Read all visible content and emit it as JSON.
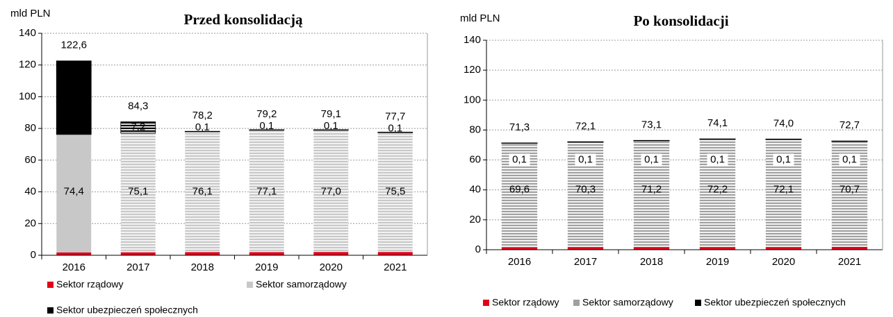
{
  "chart_data": [
    {
      "type": "bar",
      "stacked": true,
      "title": "Przed konsolidacją",
      "y_label": "mld PLN",
      "categories": [
        "2016",
        "2017",
        "2018",
        "2019",
        "2020",
        "2021"
      ],
      "series": [
        {
          "name": "Sektor rządowy",
          "color": "#e3001b",
          "values": [
            1.8,
            1.9,
            2.0,
            2.0,
            2.1,
            2.1
          ],
          "value_labels": [
            "1,8",
            "1,9",
            "2,0",
            "2,0",
            "2,1",
            "2,1"
          ]
        },
        {
          "name": "Sektor samorządowy",
          "color": "#c8c8c8",
          "values": [
            74.4,
            75.1,
            76.1,
            77.1,
            77.0,
            75.5
          ],
          "value_labels": [
            "74,4",
            "75,1",
            "76,1",
            "77,1",
            "77,0",
            "75,5"
          ]
        },
        {
          "name": "Sektor ubezpieczeń społecznych",
          "color": "#000000",
          "values": [
            46.4,
            7.2,
            0.1,
            0.1,
            0.1,
            0.1
          ],
          "value_labels": [
            "46,4",
            "7,2",
            "0,1",
            "0,1",
            "0,1",
            "0,1"
          ]
        }
      ],
      "totals": [
        122.6,
        84.3,
        78.2,
        79.2,
        79.1,
        77.7
      ],
      "total_labels": [
        "122,6",
        "84,3",
        "78,2",
        "79,2",
        "79,1",
        "77,7"
      ],
      "ylim": [
        0,
        140
      ],
      "yticks": [
        0,
        20,
        40,
        60,
        80,
        100,
        120,
        140
      ],
      "grid": true,
      "legend": "bottom"
    },
    {
      "type": "bar",
      "stacked": true,
      "title": "Po konsolidacji",
      "y_label": "mld PLN",
      "categories": [
        "2016",
        "2017",
        "2018",
        "2019",
        "2020",
        "2021"
      ],
      "series": [
        {
          "name": "Sektor rządowy",
          "color": "#e3001b",
          "values": [
            1.7,
            1.8,
            1.8,
            1.8,
            1.8,
            1.9
          ],
          "value_labels": [
            "1,7",
            "1,8",
            "1,8",
            "1,8",
            "1,8",
            "1,9"
          ]
        },
        {
          "name": "Sektor samorządowy",
          "color": "#a0a0a0",
          "values": [
            69.6,
            70.3,
            71.2,
            72.2,
            72.1,
            70.7
          ],
          "value_labels": [
            "69,6",
            "70,3",
            "71,2",
            "72,2",
            "72,1",
            "70,7"
          ]
        },
        {
          "name": "Sektor ubezpieczeń społecznych",
          "color": "#000000",
          "values": [
            0.1,
            0.1,
            0.1,
            0.1,
            0.1,
            0.1
          ],
          "value_labels": [
            "0,1",
            "0,1",
            "0,1",
            "0,1",
            "0,1",
            "0,1"
          ]
        }
      ],
      "totals": [
        71.3,
        72.1,
        73.1,
        74.1,
        74.0,
        72.7
      ],
      "total_labels": [
        "71,3",
        "72,1",
        "73,1",
        "74,1",
        "74,0",
        "72,7"
      ],
      "ylim": [
        0,
        140
      ],
      "yticks": [
        0,
        20,
        40,
        60,
        80,
        100,
        120,
        140
      ],
      "grid": true,
      "legend": "bottom"
    }
  ]
}
